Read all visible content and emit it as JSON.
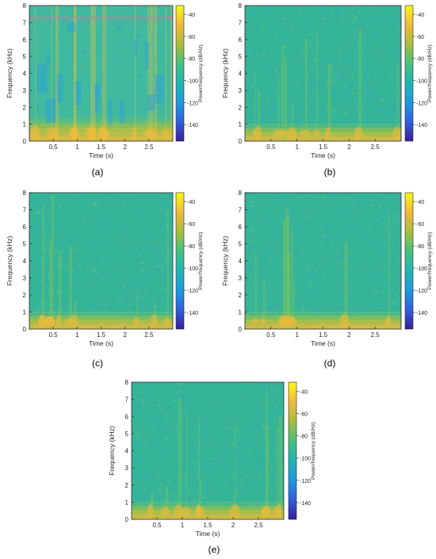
{
  "figure": {
    "panel_labels": [
      "(a)",
      "(b)",
      "(c)",
      "(d)",
      "(e)"
    ]
  },
  "chart_data": [
    {
      "type": "heatmap",
      "panel": "(a)",
      "xlabel": "Time (s)",
      "ylabel": "Frequency (kHz)",
      "colorbar_label": "Power/frequency (dB/Hz)",
      "xticks": [
        "0.5",
        "1",
        "1.5",
        "2",
        "2.5"
      ],
      "xlim": [
        0,
        3
      ],
      "yticks": [
        "0",
        "1",
        "2",
        "3",
        "4",
        "5",
        "6",
        "7",
        "8"
      ],
      "ylim": [
        0,
        8
      ],
      "colorbar_ticks": [
        "-40",
        "-60",
        "-80",
        "-100",
        "-120",
        "-140"
      ],
      "clim": [
        -155,
        -32
      ]
    },
    {
      "type": "heatmap",
      "panel": "(b)",
      "xlabel": "Time (s)",
      "ylabel": "Frequency (kHz)",
      "colorbar_label": "Power/frequency (dB/Hz)",
      "xticks": [
        "0.5",
        "1",
        "1.5",
        "2",
        "2.5"
      ],
      "xlim": [
        0,
        3
      ],
      "yticks": [
        "0",
        "1",
        "2",
        "3",
        "4",
        "5",
        "6",
        "7",
        "8"
      ],
      "ylim": [
        0,
        8
      ],
      "colorbar_ticks": [
        "-40",
        "-60",
        "-80",
        "-100",
        "-120",
        "-140"
      ],
      "clim": [
        -155,
        -32
      ]
    },
    {
      "type": "heatmap",
      "panel": "(c)",
      "xlabel": "Time (s)",
      "ylabel": "Frequency (kHz)",
      "colorbar_label": "Power/frequency (dB/Hz)",
      "xticks": [
        "0.5",
        "1",
        "1.5",
        "2",
        "2.5"
      ],
      "xlim": [
        0,
        3
      ],
      "yticks": [
        "0",
        "1",
        "2",
        "3",
        "4",
        "5",
        "6",
        "7",
        "8"
      ],
      "ylim": [
        0,
        8
      ],
      "colorbar_ticks": [
        "-40",
        "-60",
        "-80",
        "-100",
        "-120",
        "-140"
      ],
      "clim": [
        -155,
        -32
      ]
    },
    {
      "type": "heatmap",
      "panel": "(d)",
      "xlabel": "Time (s)",
      "ylabel": "Frequency (kHz)",
      "colorbar_label": "Power/frequency (dB/Hz)",
      "xticks": [
        "0.5",
        "1",
        "1.5",
        "2",
        "2.5"
      ],
      "xlim": [
        0,
        3
      ],
      "yticks": [
        "0",
        "1",
        "2",
        "3",
        "4",
        "5",
        "6",
        "7",
        "8"
      ],
      "ylim": [
        0,
        8
      ],
      "colorbar_ticks": [
        "-40",
        "-60",
        "-80",
        "-100",
        "-120",
        "-140"
      ],
      "clim": [
        -155,
        -32
      ]
    },
    {
      "type": "heatmap",
      "panel": "(e)",
      "xlabel": "Time (s)",
      "ylabel": "Frequency (kHz)",
      "colorbar_label": "Power/frequency (dB/Hz)",
      "xticks": [
        "0.5",
        "1",
        "1.5",
        "2",
        "2.5"
      ],
      "xlim": [
        0,
        3
      ],
      "yticks": [
        "0",
        "1",
        "2",
        "3",
        "4",
        "5",
        "6",
        "7",
        "8"
      ],
      "ylim": [
        0,
        8
      ],
      "colorbar_ticks": [
        "-40",
        "-60",
        "-80",
        "-100",
        "-120",
        "-140"
      ],
      "clim": [
        -155,
        -32
      ]
    }
  ],
  "colors": {
    "colormap": [
      "#3a1e9c",
      "#2f5fe0",
      "#1e9adf",
      "#1fb7b2",
      "#45c27f",
      "#a8be3b",
      "#f2b93a",
      "#f8fa13"
    ],
    "axis": "#262626",
    "background": "#ffffff"
  }
}
